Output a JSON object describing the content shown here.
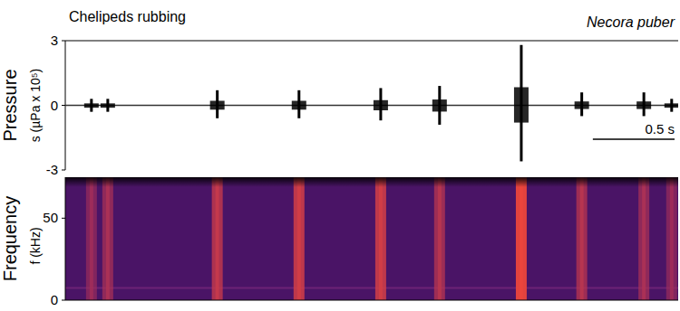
{
  "chart_data": [
    {
      "type": "waveform",
      "title": "Chelipeds rubbing",
      "subtitle": "Necora puber",
      "ylabel": "Pressure",
      "ylabel_unit": "s (µPa x 10⁵)",
      "x": [
        0.16,
        0.26,
        0.93,
        1.43,
        1.93,
        2.29,
        2.79,
        3.16,
        3.54,
        3.71
      ],
      "series": [
        {
          "values": [
            0.3,
            0.3,
            0.7,
            0.7,
            0.8,
            0.9,
            2.8,
            0.6,
            0.6,
            0.3
          ],
          "color": "#000000"
        },
        {
          "values": [
            -0.3,
            -0.3,
            -0.6,
            -0.6,
            -0.7,
            -0.9,
            -2.6,
            -0.5,
            -0.5,
            -0.3
          ],
          "color": "#000000"
        }
      ],
      "xlim": [
        0,
        3.75
      ],
      "ylim": [
        -3,
        3
      ],
      "yticks": [
        -3,
        0,
        3
      ],
      "tick_labels": "y",
      "scale_bar": {
        "value": 0.5,
        "label": "0.5 s"
      }
    },
    {
      "type": "heatmap",
      "ylabel": "Frequency",
      "ylabel_unit": "f (kHz)",
      "x": [
        0.16,
        0.26,
        0.93,
        1.43,
        1.93,
        2.29,
        2.79,
        3.16,
        3.54,
        3.71
      ],
      "intensity": [
        0.4,
        0.5,
        0.7,
        0.8,
        0.8,
        0.6,
        1.0,
        0.6,
        0.5,
        0.4
      ],
      "xlim": [
        0,
        3.75
      ],
      "ylim": [
        0,
        75
      ],
      "yticks": [
        0,
        50
      ],
      "tick_labels": "y"
    }
  ]
}
